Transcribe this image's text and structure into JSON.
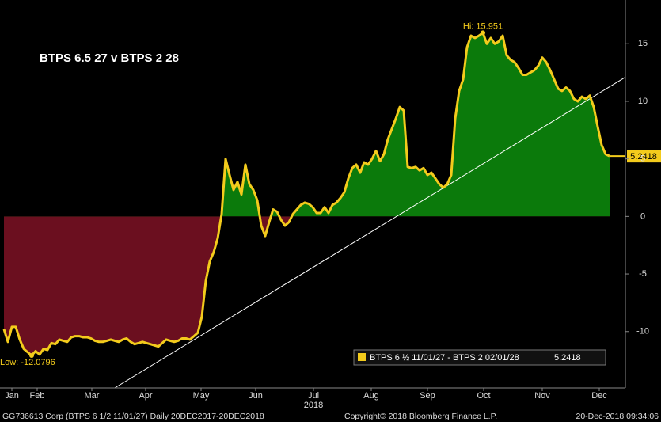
{
  "chart_data": {
    "type": "line",
    "title": "BTPS 6.5 27 v BTPS 2 28",
    "hi_label": "Hi: 15.951",
    "low_label": "Low: -12.0796",
    "last_label": "5.2418",
    "legend_value": "5.2418",
    "year_label": "2018",
    "footer_left": "GG736613 Corp (BTPS 6 1/2 11/01/27)  Daily 20DEC2017-20DEC2018",
    "footer_center": "Copyright© 2018 Bloomberg Finance L.P.",
    "footer_right": "20-Dec-2018 09:34:06",
    "positive_color": "#0b7a0b",
    "negative_color": "#6b0f1f",
    "trendline": {
      "color": "#ffffff",
      "x": [
        28,
        157
      ],
      "y": [
        -14.9,
        12.1
      ]
    },
    "series": [
      {
        "name": "BTPS 6 ½ 11/01/27 - BTPS 2 02/01/28",
        "color": "#f3cb1c",
        "values": [
          -9.8,
          -10.9,
          -9.6,
          -9.6,
          -10.7,
          -11.5,
          -11.8,
          -12.0796,
          -11.7,
          -12.0,
          -11.5,
          -11.6,
          -11.0,
          -11.1,
          -10.7,
          -10.8,
          -10.9,
          -10.5,
          -10.4,
          -10.4,
          -10.5,
          -10.5,
          -10.6,
          -10.8,
          -10.9,
          -10.9,
          -10.8,
          -10.7,
          -10.8,
          -10.9,
          -10.7,
          -10.6,
          -10.9,
          -11.1,
          -11.0,
          -10.9,
          -11.0,
          -11.1,
          -11.2,
          -11.3,
          -11.0,
          -10.7,
          -10.8,
          -10.9,
          -10.8,
          -10.6,
          -10.6,
          -10.7,
          -10.4,
          -10.1,
          -8.7,
          -5.6,
          -3.9,
          -3.1,
          -1.9,
          0.2,
          5.0,
          3.6,
          2.3,
          3.0,
          1.9,
          4.5,
          2.8,
          2.3,
          1.4,
          -0.8,
          -1.7,
          -0.5,
          0.6,
          0.4,
          -0.3,
          -0.8,
          -0.5,
          0.2,
          0.6,
          1.0,
          1.2,
          1.1,
          0.8,
          0.3,
          0.3,
          0.8,
          0.3,
          1.0,
          1.2,
          1.6,
          2.1,
          3.3,
          4.2,
          4.5,
          3.8,
          4.7,
          4.5,
          5.0,
          5.7,
          4.8,
          5.4,
          6.7,
          7.6,
          8.5,
          9.5,
          9.2,
          4.3,
          4.2,
          4.3,
          4.0,
          4.2,
          3.6,
          3.8,
          3.3,
          2.8,
          2.5,
          2.8,
          3.6,
          8.5,
          10.9,
          11.9,
          14.7,
          15.7,
          15.5,
          15.7,
          15.951,
          15.0,
          15.5,
          15.0,
          15.2,
          15.7,
          14.0,
          13.6,
          13.4,
          12.9,
          12.3,
          12.3,
          12.5,
          12.7,
          13.1,
          13.8,
          13.4,
          12.7,
          11.9,
          11.1,
          10.9,
          11.2,
          10.9,
          10.2,
          10.0,
          10.4,
          10.2,
          10.5,
          9.5,
          7.8,
          6.2,
          5.4,
          5.2418
        ]
      }
    ],
    "xlim": [
      0,
      157
    ],
    "xticks": [
      {
        "value": 2,
        "label": "Jan"
      },
      {
        "value": 8.4,
        "label": "Feb"
      },
      {
        "value": 22.2,
        "label": "Mar"
      },
      {
        "value": 35.8,
        "label": "Apr"
      },
      {
        "value": 49.8,
        "label": "May"
      },
      {
        "value": 63.6,
        "label": "Jun"
      },
      {
        "value": 78.2,
        "label": "Jul"
      },
      {
        "value": 92.8,
        "label": "Aug"
      },
      {
        "value": 107,
        "label": "Sep"
      },
      {
        "value": 121.2,
        "label": "Oct"
      },
      {
        "value": 136,
        "label": "Nov"
      },
      {
        "value": 150.4,
        "label": "Dec"
      }
    ],
    "ylim": [
      -14.9,
      18.8
    ],
    "yticks": [
      -10,
      -5,
      0,
      5,
      10,
      15
    ]
  }
}
